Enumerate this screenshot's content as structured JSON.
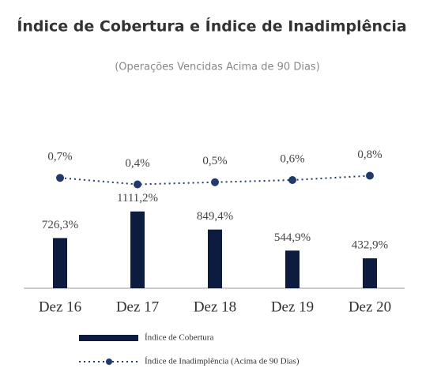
{
  "chart_data": {
    "type": "bar",
    "title": "Índice de Cobertura e Índice de Inadimplência",
    "subtitle": "(Operações Vencidas Acima de 90 Dias)",
    "categories": [
      "Dez 16",
      "Dez 17",
      "Dez 18",
      "Dez 19",
      "Dez 20"
    ],
    "ylim": [
      0,
      1200
    ],
    "y2lim": [
      0,
      1
    ],
    "series": [
      {
        "name": "Índice de Cobertura",
        "type": "bar",
        "color": "#0d1b3e",
        "values": [
          726.3,
          1111.2,
          849.4,
          544.9,
          432.9
        ],
        "value_labels": [
          "726,3%",
          "1111,2%",
          "849,4%",
          "544,9%",
          "432,9%"
        ]
      },
      {
        "name": "Índice de Inadimplência (Acima de 90 Dias)",
        "type": "line",
        "axis": "y2",
        "color": "#1f3a6b",
        "values": [
          0.7,
          0.4,
          0.5,
          0.6,
          0.8
        ],
        "value_labels": [
          "0,7%",
          "0,4%",
          "0,5%",
          "0,6%",
          "0,8%"
        ]
      }
    ]
  }
}
